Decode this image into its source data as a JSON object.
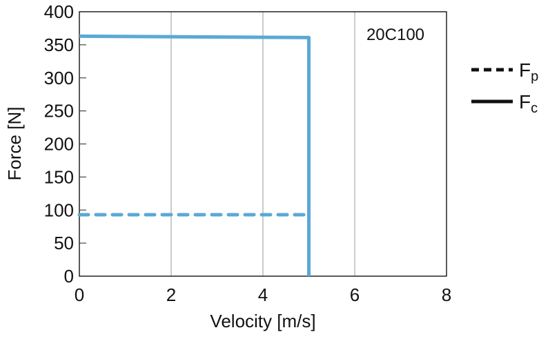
{
  "chart_data": {
    "type": "line",
    "title": "",
    "annotation": "20C100",
    "xlabel": "Velocity [m/s]",
    "ylabel": "Force [N]",
    "xlim": [
      0,
      8
    ],
    "ylim": [
      0,
      400
    ],
    "xticks": [
      "0",
      "2",
      "4",
      "6",
      "8"
    ],
    "xtick_values": [
      0,
      2,
      4,
      6,
      8
    ],
    "yticks": [
      "0",
      "50",
      "100",
      "150",
      "200",
      "250",
      "300",
      "350",
      "400"
    ],
    "ytick_values": [
      0,
      50,
      100,
      150,
      200,
      250,
      300,
      350,
      400
    ],
    "grid": "vertical",
    "legend_position": "right",
    "series": [
      {
        "name": "Fp",
        "name_main": "F",
        "name_sub": "p",
        "style": "dashed",
        "color": "#5ba8d6",
        "x": [
          0,
          5
        ],
        "y": [
          93,
          93
        ]
      },
      {
        "name": "Fc",
        "name_main": "F",
        "name_sub": "c",
        "style": "solid",
        "color": "#5ba8d6",
        "x": [
          0,
          5,
          5
        ],
        "y": [
          363,
          361,
          0
        ]
      }
    ]
  }
}
